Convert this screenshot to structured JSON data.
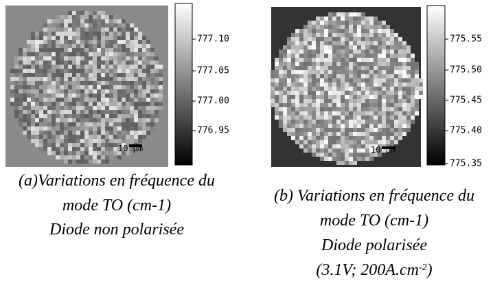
{
  "panels": [
    {
      "colorbar": {
        "ticks": [
          "777.10",
          "777.05",
          "777.00",
          "776.95"
        ]
      },
      "scale_bar": "10 µm",
      "caption": [
        [
          "(a)Variations en fréquence du"
        ],
        [
          "mode TO (cm-1)"
        ],
        [
          "Diode non polarisée"
        ]
      ]
    },
    {
      "colorbar": {
        "ticks": [
          "775.55",
          "775.50",
          "775.45",
          "775.40",
          "775.35"
        ]
      },
      "scale_bar": "10 µm",
      "caption": [
        [
          "(b) Variations en fréquence du"
        ],
        [
          "mode TO (cm-1)"
        ],
        [
          "Diode polarisée"
        ],
        [
          "(3.1V; 200A.cm",
          "-2",
          ")"
        ]
      ]
    }
  ]
}
